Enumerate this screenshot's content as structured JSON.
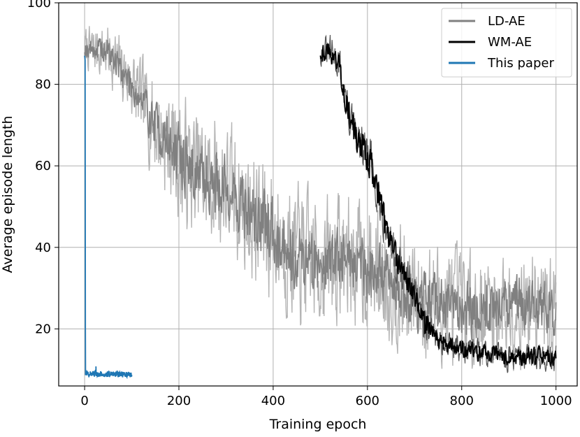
{
  "chart_data": {
    "type": "line",
    "title": "",
    "xlabel": "Training epoch",
    "ylabel": "Average episode length",
    "xlim": [
      -55,
      1045
    ],
    "ylim": [
      6,
      100
    ],
    "xticks": [
      0,
      200,
      400,
      600,
      800,
      1000
    ],
    "yticks": [
      20,
      40,
      60,
      80,
      100
    ],
    "grid": true,
    "legend_position": "top-right",
    "series": [
      {
        "name": "LD-AE",
        "color": "#808080",
        "band_color": "#b4b4b4",
        "x_range": [
          0,
          1000
        ],
        "trend": [
          [
            0,
            89
          ],
          [
            50,
            88
          ],
          [
            100,
            80
          ],
          [
            150,
            70
          ],
          [
            200,
            62
          ],
          [
            250,
            57
          ],
          [
            300,
            55
          ],
          [
            350,
            48
          ],
          [
            400,
            44
          ],
          [
            450,
            38
          ],
          [
            500,
            36
          ],
          [
            550,
            38
          ],
          [
            600,
            35
          ],
          [
            650,
            32
          ],
          [
            700,
            27
          ],
          [
            750,
            26
          ],
          [
            800,
            25
          ],
          [
            850,
            25
          ],
          [
            900,
            26
          ],
          [
            950,
            26
          ],
          [
            1000,
            24
          ]
        ],
        "spread": [
          [
            0,
            4
          ],
          [
            100,
            7
          ],
          [
            200,
            12
          ],
          [
            400,
            13
          ],
          [
            600,
            12
          ],
          [
            800,
            11
          ],
          [
            1000,
            10
          ]
        ]
      },
      {
        "name": "WM-AE",
        "color": "#000000",
        "x_range": [
          500,
          1000
        ],
        "trend": [
          [
            500,
            88
          ],
          [
            520,
            88
          ],
          [
            540,
            85
          ],
          [
            560,
            73
          ],
          [
            580,
            65
          ],
          [
            600,
            63
          ],
          [
            620,
            56
          ],
          [
            640,
            44
          ],
          [
            660,
            37
          ],
          [
            680,
            33
          ],
          [
            700,
            28
          ],
          [
            720,
            22
          ],
          [
            740,
            19
          ],
          [
            760,
            17
          ],
          [
            780,
            16
          ],
          [
            800,
            15
          ],
          [
            850,
            14
          ],
          [
            900,
            13
          ],
          [
            950,
            13
          ],
          [
            1000,
            13
          ]
        ],
        "spread": [
          [
            500,
            3
          ],
          [
            600,
            6
          ],
          [
            700,
            4
          ],
          [
            800,
            3
          ],
          [
            1000,
            3
          ]
        ]
      },
      {
        "name": "This paper",
        "color": "#1f77b4",
        "x_range": [
          0,
          100
        ],
        "trend": [
          [
            0,
            87
          ],
          [
            1,
            86
          ],
          [
            2,
            9
          ],
          [
            100,
            8.8
          ]
        ],
        "spread": [
          [
            0,
            0.5
          ],
          [
            100,
            0.5
          ]
        ]
      }
    ]
  }
}
